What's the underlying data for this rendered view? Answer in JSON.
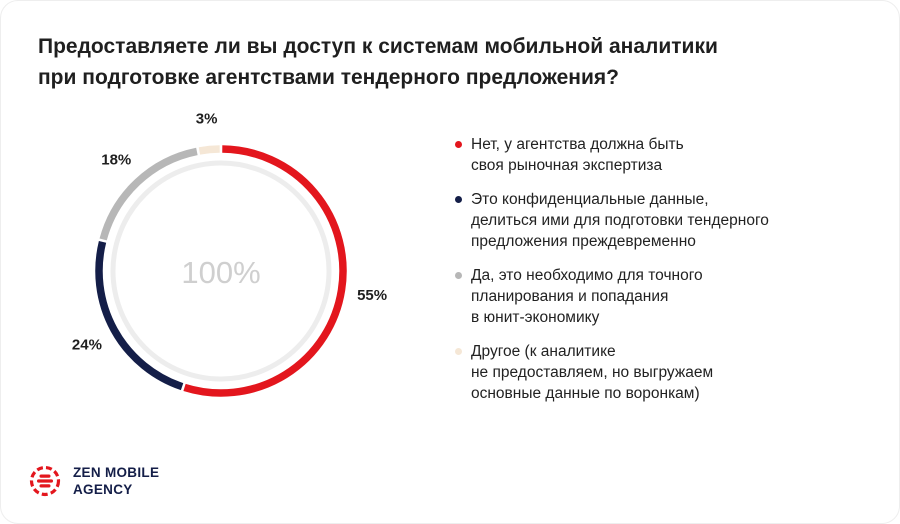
{
  "title_lines": [
    "Предоставляете ли вы доступ к системам мобильной аналитики",
    "при подготовке агентствами тендерного предложения?"
  ],
  "chart_data": {
    "type": "pie",
    "variant": "donut",
    "center_label": "100%",
    "slices": [
      {
        "value": 55,
        "label": "55%",
        "color": "#e3161d",
        "legend_lines": [
          "Нет, у агентства должна быть",
          "своя рыночная экспертиза"
        ]
      },
      {
        "value": 24,
        "label": "24%",
        "color": "#141e48",
        "legend_lines": [
          "Это конфиденциальные данные,",
          "делиться ими для подготовки тендерного",
          "предложения преждевременно"
        ]
      },
      {
        "value": 18,
        "label": "18%",
        "color": "#b7b7b7",
        "legend_lines": [
          "Да, это необходимо для точного",
          "планирования и попадания",
          "в юнит-экономику"
        ]
      },
      {
        "value": 3,
        "label": "3%",
        "color": "#f5e7d6",
        "legend_lines": [
          "Другое (к аналитике",
          "не предоставляем, но выгружаем",
          "основные данные по воронкам)"
        ]
      }
    ],
    "legend_position": "right"
  },
  "logo": {
    "lines": [
      "ZEN MOBILE",
      "AGENCY"
    ],
    "brand_color": "#e3161d",
    "text_color": "#141e48",
    "icon": "zen-logo-icon"
  }
}
